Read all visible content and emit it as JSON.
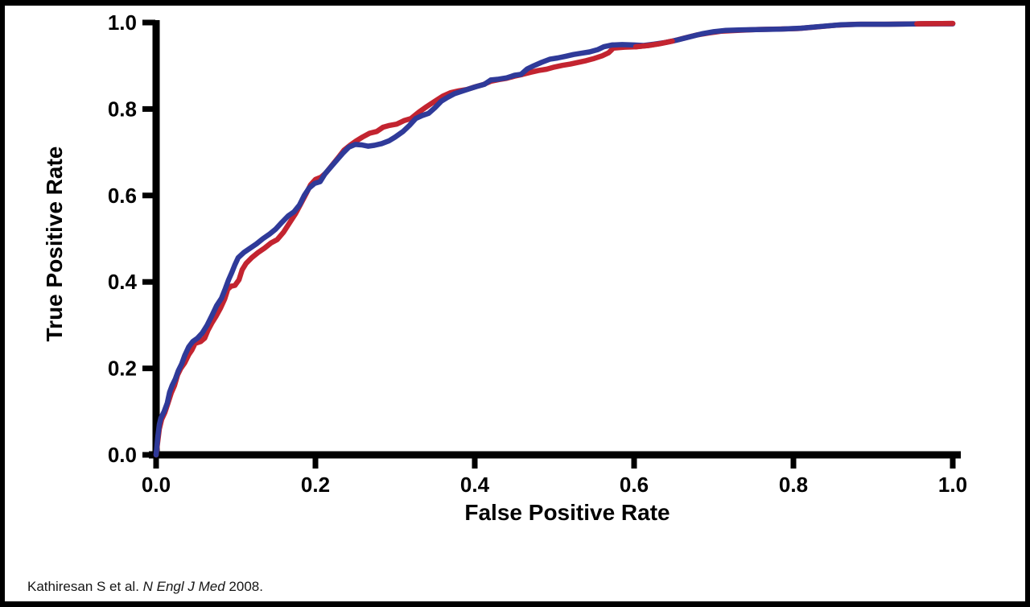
{
  "citation": {
    "authors": "Kathiresan S et al. ",
    "journal": "N Engl J Med",
    "year_text": " 2008."
  },
  "chart_data": {
    "type": "line",
    "title": "",
    "xlabel": "False Positive Rate",
    "ylabel": "True Positive Rate",
    "xlim": [
      0,
      1
    ],
    "ylim": [
      0,
      1
    ],
    "grid": false,
    "legend": "none",
    "axis_color": "#000000",
    "background_color": "#ffffff",
    "x_ticks": [
      0.0,
      0.2,
      0.4,
      0.6,
      0.8,
      1.0
    ],
    "x_tick_labels": [
      "0.0",
      "0.2",
      "0.4",
      "0.6",
      "0.8",
      "1.0"
    ],
    "y_ticks": [
      0.0,
      0.2,
      0.4,
      0.6,
      0.8,
      1.0
    ],
    "y_tick_labels": [
      "0.0",
      "0.2",
      "0.4",
      "0.6",
      "0.8",
      "1.0"
    ],
    "series": [
      {
        "id": "red",
        "name": "red-curve",
        "color": "#c32430",
        "points": [
          [
            0.0,
            0.0
          ],
          [
            0.002,
            0.03
          ],
          [
            0.004,
            0.06
          ],
          [
            0.007,
            0.082
          ],
          [
            0.011,
            0.098
          ],
          [
            0.015,
            0.12
          ],
          [
            0.019,
            0.143
          ],
          [
            0.023,
            0.16
          ],
          [
            0.027,
            0.185
          ],
          [
            0.031,
            0.2
          ],
          [
            0.036,
            0.213
          ],
          [
            0.041,
            0.232
          ],
          [
            0.045,
            0.243
          ],
          [
            0.049,
            0.258
          ],
          [
            0.056,
            0.262
          ],
          [
            0.061,
            0.27
          ],
          [
            0.065,
            0.288
          ],
          [
            0.07,
            0.305
          ],
          [
            0.075,
            0.32
          ],
          [
            0.081,
            0.34
          ],
          [
            0.086,
            0.36
          ],
          [
            0.09,
            0.383
          ],
          [
            0.094,
            0.39
          ],
          [
            0.099,
            0.392
          ],
          [
            0.104,
            0.405
          ],
          [
            0.108,
            0.428
          ],
          [
            0.113,
            0.443
          ],
          [
            0.12,
            0.456
          ],
          [
            0.128,
            0.468
          ],
          [
            0.136,
            0.478
          ],
          [
            0.144,
            0.49
          ],
          [
            0.152,
            0.498
          ],
          [
            0.16,
            0.515
          ],
          [
            0.168,
            0.538
          ],
          [
            0.175,
            0.558
          ],
          [
            0.182,
            0.582
          ],
          [
            0.188,
            0.603
          ],
          [
            0.194,
            0.625
          ],
          [
            0.2,
            0.637
          ],
          [
            0.207,
            0.642
          ],
          [
            0.213,
            0.652
          ],
          [
            0.22,
            0.668
          ],
          [
            0.228,
            0.686
          ],
          [
            0.236,
            0.705
          ],
          [
            0.244,
            0.717
          ],
          [
            0.251,
            0.726
          ],
          [
            0.259,
            0.735
          ],
          [
            0.268,
            0.744
          ],
          [
            0.277,
            0.748
          ],
          [
            0.285,
            0.758
          ],
          [
            0.293,
            0.762
          ],
          [
            0.302,
            0.765
          ],
          [
            0.311,
            0.773
          ],
          [
            0.32,
            0.778
          ],
          [
            0.33,
            0.793
          ],
          [
            0.34,
            0.806
          ],
          [
            0.35,
            0.818
          ],
          [
            0.36,
            0.83
          ],
          [
            0.37,
            0.838
          ],
          [
            0.38,
            0.842
          ],
          [
            0.39,
            0.845
          ],
          [
            0.4,
            0.851
          ],
          [
            0.41,
            0.856
          ],
          [
            0.42,
            0.864
          ],
          [
            0.43,
            0.868
          ],
          [
            0.44,
            0.871
          ],
          [
            0.45,
            0.876
          ],
          [
            0.46,
            0.88
          ],
          [
            0.47,
            0.885
          ],
          [
            0.48,
            0.889
          ],
          [
            0.49,
            0.892
          ],
          [
            0.5,
            0.897
          ],
          [
            0.51,
            0.901
          ],
          [
            0.52,
            0.904
          ],
          [
            0.53,
            0.908
          ],
          [
            0.54,
            0.912
          ],
          [
            0.55,
            0.917
          ],
          [
            0.56,
            0.923
          ],
          [
            0.568,
            0.93
          ],
          [
            0.574,
            0.941
          ],
          [
            0.588,
            0.943
          ],
          [
            0.602,
            0.944
          ],
          [
            0.618,
            0.947
          ],
          [
            0.632,
            0.951
          ],
          [
            0.648,
            0.957
          ],
          [
            0.663,
            0.964
          ],
          [
            0.678,
            0.971
          ],
          [
            0.694,
            0.976
          ],
          [
            0.71,
            0.98
          ],
          [
            0.73,
            0.982
          ],
          [
            0.755,
            0.984
          ],
          [
            0.78,
            0.985
          ],
          [
            0.805,
            0.986
          ],
          [
            0.83,
            0.99
          ],
          [
            0.855,
            0.994
          ],
          [
            0.88,
            0.996
          ],
          [
            0.915,
            0.996
          ],
          [
            0.955,
            0.997
          ],
          [
            1.0,
            0.998
          ]
        ]
      },
      {
        "id": "blue",
        "name": "blue-curve",
        "color": "#2f3a99",
        "points": [
          [
            0.0,
            0.0
          ],
          [
            0.002,
            0.04
          ],
          [
            0.004,
            0.07
          ],
          [
            0.006,
            0.085
          ],
          [
            0.01,
            0.1
          ],
          [
            0.014,
            0.12
          ],
          [
            0.017,
            0.145
          ],
          [
            0.02,
            0.16
          ],
          [
            0.024,
            0.175
          ],
          [
            0.028,
            0.195
          ],
          [
            0.032,
            0.21
          ],
          [
            0.036,
            0.23
          ],
          [
            0.041,
            0.25
          ],
          [
            0.046,
            0.262
          ],
          [
            0.052,
            0.27
          ],
          [
            0.058,
            0.282
          ],
          [
            0.064,
            0.3
          ],
          [
            0.07,
            0.322
          ],
          [
            0.076,
            0.345
          ],
          [
            0.082,
            0.362
          ],
          [
            0.087,
            0.385
          ],
          [
            0.091,
            0.405
          ],
          [
            0.095,
            0.422
          ],
          [
            0.099,
            0.44
          ],
          [
            0.103,
            0.456
          ],
          [
            0.11,
            0.468
          ],
          [
            0.118,
            0.478
          ],
          [
            0.126,
            0.488
          ],
          [
            0.134,
            0.5
          ],
          [
            0.142,
            0.51
          ],
          [
            0.15,
            0.522
          ],
          [
            0.158,
            0.538
          ],
          [
            0.166,
            0.553
          ],
          [
            0.173,
            0.562
          ],
          [
            0.18,
            0.578
          ],
          [
            0.186,
            0.6
          ],
          [
            0.192,
            0.617
          ],
          [
            0.199,
            0.628
          ],
          [
            0.206,
            0.632
          ],
          [
            0.212,
            0.65
          ],
          [
            0.219,
            0.665
          ],
          [
            0.227,
            0.682
          ],
          [
            0.234,
            0.697
          ],
          [
            0.242,
            0.712
          ],
          [
            0.25,
            0.718
          ],
          [
            0.258,
            0.717
          ],
          [
            0.266,
            0.714
          ],
          [
            0.274,
            0.716
          ],
          [
            0.283,
            0.72
          ],
          [
            0.292,
            0.726
          ],
          [
            0.3,
            0.735
          ],
          [
            0.31,
            0.748
          ],
          [
            0.318,
            0.762
          ],
          [
            0.326,
            0.778
          ],
          [
            0.334,
            0.785
          ],
          [
            0.342,
            0.79
          ],
          [
            0.35,
            0.803
          ],
          [
            0.358,
            0.818
          ],
          [
            0.366,
            0.827
          ],
          [
            0.374,
            0.835
          ],
          [
            0.382,
            0.84
          ],
          [
            0.392,
            0.846
          ],
          [
            0.402,
            0.852
          ],
          [
            0.412,
            0.857
          ],
          [
            0.42,
            0.867
          ],
          [
            0.43,
            0.869
          ],
          [
            0.44,
            0.872
          ],
          [
            0.45,
            0.878
          ],
          [
            0.458,
            0.88
          ],
          [
            0.466,
            0.893
          ],
          [
            0.474,
            0.9
          ],
          [
            0.484,
            0.908
          ],
          [
            0.494,
            0.915
          ],
          [
            0.504,
            0.918
          ],
          [
            0.514,
            0.922
          ],
          [
            0.524,
            0.926
          ],
          [
            0.534,
            0.929
          ],
          [
            0.544,
            0.932
          ],
          [
            0.554,
            0.937
          ],
          [
            0.562,
            0.944
          ],
          [
            0.572,
            0.948
          ],
          [
            0.585,
            0.949
          ],
          [
            0.6,
            0.948
          ],
          [
            0.612,
            0.947
          ],
          [
            0.625,
            0.95
          ],
          [
            0.64,
            0.954
          ],
          [
            0.655,
            0.96
          ],
          [
            0.67,
            0.967
          ],
          [
            0.685,
            0.974
          ],
          [
            0.7,
            0.979
          ],
          [
            0.715,
            0.982
          ],
          [
            0.735,
            0.983
          ],
          [
            0.76,
            0.984
          ],
          [
            0.785,
            0.985
          ],
          [
            0.81,
            0.987
          ],
          [
            0.835,
            0.991
          ],
          [
            0.86,
            0.995
          ],
          [
            0.885,
            0.996
          ],
          [
            0.92,
            0.996
          ],
          [
            0.96,
            0.997
          ],
          [
            1.0,
            0.997
          ]
        ]
      }
    ]
  }
}
